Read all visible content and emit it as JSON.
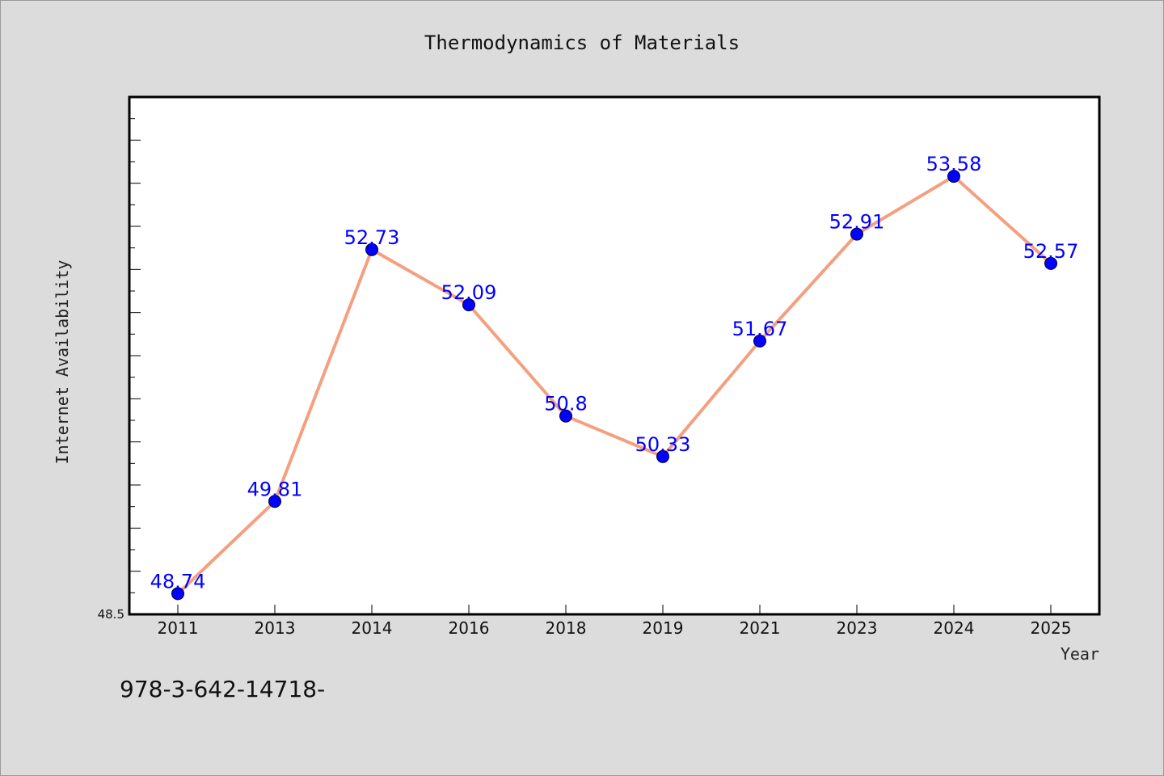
{
  "chart_data": {
    "type": "line",
    "title": "Thermodynamics of Materials",
    "xlabel": "Year",
    "ylabel": "Internet Availability",
    "categories": [
      "2011",
      "2013",
      "2014",
      "2016",
      "2018",
      "2019",
      "2021",
      "2023",
      "2024",
      "2025"
    ],
    "series": [
      {
        "values": [
          48.74,
          49.81,
          52.73,
          52.09,
          50.8,
          50.33,
          51.67,
          52.91,
          53.58,
          52.57
        ],
        "line_color": "#f4a080",
        "marker_color": "#0000ff"
      }
    ],
    "ylim": [
      48.5,
      54.5
    ],
    "y_tick_labels": [
      "48.5"
    ],
    "grid": false,
    "legend": "none",
    "data_labels": true
  },
  "footer_text": "978-3-642-14718-"
}
